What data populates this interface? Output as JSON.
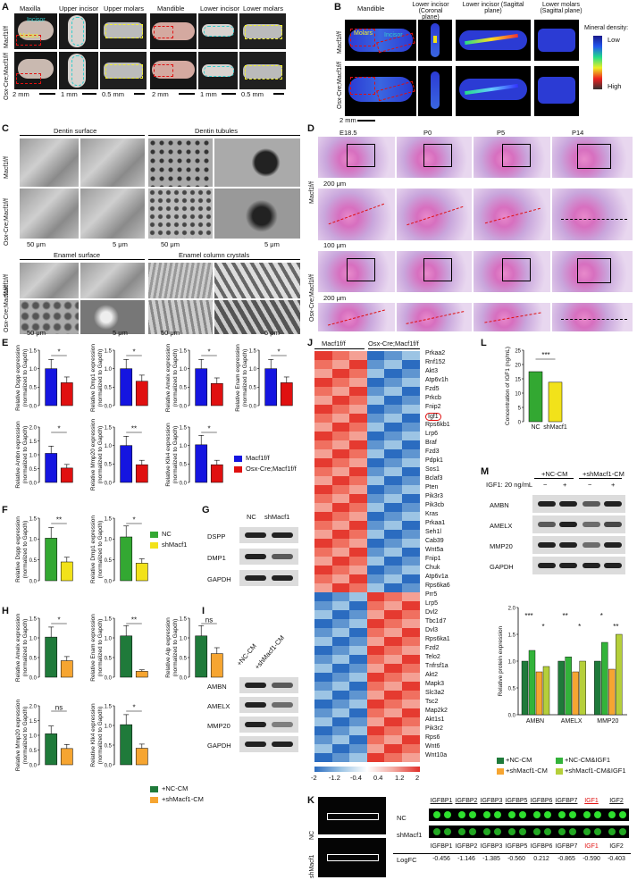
{
  "panels": {
    "A": "A",
    "B": "B",
    "C": "C",
    "D": "D",
    "E": "E",
    "F": "F",
    "G": "G",
    "H": "H",
    "I": "I",
    "J": "J",
    "K": "K",
    "L": "L",
    "M": "M"
  },
  "A": {
    "headers": [
      "Maxilla",
      "Upper incisor",
      "Upper molars",
      "Mandible",
      "Lower incisor",
      "Lower molars"
    ],
    "rows": [
      "Macf1f/f",
      "Osx-Cre;Macf1f/f"
    ],
    "scale": [
      "2 mm",
      "1 mm",
      "0.5 mm",
      "2 mm",
      "1 mm",
      "0.5 mm"
    ],
    "labels": {
      "incisor": "Incisor",
      "molars": "Molars"
    }
  },
  "B": {
    "headers": [
      "Mandible",
      "Lower incisor (Coronal plane)",
      "Lower incisor (Sagittal plane)",
      "Lower molars (Sagittal plane)"
    ],
    "rows": [
      "Macf1f/f",
      "Osx-Cre;Macf1f/f"
    ],
    "legend_title": "Mineral density:",
    "low": "Low",
    "high": "High",
    "scale": "2 mm",
    "labels": {
      "incisor": "Incisor",
      "molars": "Molars"
    }
  },
  "C": {
    "headers_top": [
      "Dentin surface",
      "Dentin tubules"
    ],
    "headers_bottom": [
      "Enamel surface",
      "Enamel column crystals"
    ],
    "rows": [
      "Macf1f/f",
      "Osx-Cre;Macf1f/f"
    ],
    "scale_top": [
      "50 μm",
      "5 μm",
      "50 μm",
      "5 μm"
    ],
    "scale_bottom": [
      "50 μm",
      "5 μm",
      "50 μm",
      "5 μm"
    ]
  },
  "D": {
    "stages": [
      "E18.5",
      "P0",
      "P5",
      "P14"
    ],
    "rows": [
      "Macf1f/f",
      "Osx-Cre;Macf1f/f"
    ],
    "scale_low": "200 μm",
    "scale_high": "100 μm"
  },
  "E": {
    "charts": [
      {
        "ylabel": "Relative Dspp expression\n(normalized to Gapdh)",
        "sig": "*",
        "values": [
          1.0,
          0.62
        ],
        "ylim": [
          0,
          1.5
        ],
        "ticks": [
          "0.0",
          "0.5",
          "1.0",
          "1.5"
        ]
      },
      {
        "ylabel": "Relative Dmp1 expression\n(normalized to Gapdh)",
        "sig": "*",
        "values": [
          1.0,
          0.66
        ],
        "ylim": [
          0,
          1.5
        ],
        "ticks": [
          "0.0",
          "0.5",
          "1.0",
          "1.5"
        ]
      },
      {
        "ylabel": "Relative Amelx expression\n(normalized to Gapdh)",
        "sig": "*",
        "values": [
          1.0,
          0.6
        ],
        "ylim": [
          0,
          1.5
        ],
        "ticks": [
          "0.0",
          "0.5",
          "1.0",
          "1.5"
        ]
      },
      {
        "ylabel": "Relative Enam expression\n(normalized to Gapdh)",
        "sig": "*",
        "values": [
          1.0,
          0.62
        ],
        "ylim": [
          0,
          1.5
        ],
        "ticks": [
          "0.0",
          "0.5",
          "1.0",
          "1.5"
        ]
      },
      {
        "ylabel": "Relative Ambn expression\n(normalized to Gapdh)",
        "sig": "*",
        "values": [
          1.05,
          0.52
        ],
        "ylim": [
          0,
          2.0
        ],
        "ticks": [
          "0.0",
          "0.5",
          "1.0",
          "1.5",
          "2.0"
        ]
      },
      {
        "ylabel": "Relative Mmp20 expression\n(normalized to Gapdh)",
        "sig": "**",
        "values": [
          1.0,
          0.48
        ],
        "ylim": [
          0,
          1.5
        ],
        "ticks": [
          "0.0",
          "0.5",
          "1.0",
          "1.5"
        ]
      },
      {
        "ylabel": "Relative Klk4 expression\n(normalized to Gapdh)",
        "sig": "*",
        "values": [
          1.02,
          0.48
        ],
        "ylim": [
          0,
          1.5
        ],
        "ticks": [
          "0.0",
          "0.5",
          "1.0",
          "1.5"
        ]
      }
    ],
    "legend": [
      "Macf1f/f",
      "Osx-Cre;Macf1f/f"
    ],
    "colors": [
      "#1515e0",
      "#e01010"
    ]
  },
  "F": {
    "charts": [
      {
        "ylabel": "Relative Dspp expression\n(normalized to Gapdh)",
        "sig": "**",
        "values": [
          1.02,
          0.45
        ],
        "ylim": [
          0,
          1.5
        ],
        "ticks": [
          "0.0",
          "0.5",
          "1.0",
          "1.5"
        ]
      },
      {
        "ylabel": "Relative Dmp1 expression\n(normalized to Gapdh)",
        "sig": "*",
        "values": [
          1.05,
          0.42
        ],
        "ylim": [
          0,
          1.5
        ],
        "ticks": [
          "0.0",
          "0.5",
          "1.0",
          "1.5"
        ]
      }
    ],
    "legend": [
      "NC",
      "shMacf1"
    ],
    "colors": [
      "#33a832",
      "#f2e21a"
    ]
  },
  "G": {
    "cols": [
      "NC",
      "shMacf1"
    ],
    "rows": [
      "DSPP",
      "DMP1",
      "GAPDH"
    ]
  },
  "H": {
    "charts": [
      {
        "ylabel": "Relative Amelx expression\n(normalized to Gapdh)",
        "sig": "*",
        "values": [
          1.02,
          0.42
        ],
        "ylim": [
          0,
          1.5
        ],
        "ticks": [
          "0.0",
          "0.5",
          "1.0",
          "1.5"
        ]
      },
      {
        "ylabel": "Relative Enam expression\n(normalized to Gapdh)",
        "sig": "**",
        "values": [
          1.05,
          0.15
        ],
        "ylim": [
          0,
          1.5
        ],
        "ticks": [
          "0.0",
          "0.5",
          "1.0",
          "1.5"
        ]
      },
      {
        "ylabel": "Relative Alp expression\n(normalized to Gapdh)",
        "sig": "ns",
        "values": [
          1.05,
          0.6
        ],
        "ylim": [
          0,
          1.5
        ],
        "ticks": [
          "0.0",
          "0.5",
          "1.0",
          "1.5"
        ]
      },
      {
        "ylabel": "Relative Mmp20 expression\n(normalized to Gapdh)",
        "sig": "ns",
        "values": [
          1.05,
          0.55
        ],
        "ylim": [
          0,
          2.0
        ],
        "ticks": [
          "0.0",
          "0.5",
          "1.0",
          "1.5",
          "2.0"
        ]
      },
      {
        "ylabel": "Relative Klk4 expression\n(normalized to Gapdh)",
        "sig": "*",
        "values": [
          1.02,
          0.42
        ],
        "ylim": [
          0,
          1.5
        ],
        "ticks": [
          "0.0",
          "0.5",
          "1.0",
          "1.5"
        ]
      }
    ],
    "legend": [
      "+NC-CM",
      "+shMacf1-CM"
    ],
    "colors": [
      "#1f7a3a",
      "#f6a531"
    ]
  },
  "I": {
    "cols": [
      "+NC-CM",
      "+shMacf1-CM"
    ],
    "rows": [
      "AMBN",
      "AMELX",
      "MMP20",
      "GAPDH"
    ]
  },
  "J": {
    "groups": [
      "Macf1f/f",
      "Osx-Cre;Macf1f/f"
    ],
    "genes": [
      "Prkaa2",
      "Rnf152",
      "Akt3",
      "Atp6v1h",
      "Fzd5",
      "Prkcb",
      "Fnip2",
      "Igf1",
      "Rps6kb1",
      "Lrp6",
      "Braf",
      "Fzd3",
      "Pdpk1",
      "Sos1",
      "Bclaf3",
      "Pten",
      "Pik3r3",
      "Pik3cb",
      "Kras",
      "Prkaa1",
      "Seh1l",
      "Cab39",
      "Wnt5a",
      "Fnip1",
      "Chuk",
      "Atp6v1a",
      "Rps6ka6",
      "Prr5",
      "Lrp5",
      "Dvl2",
      "Tbc1d7",
      "Dvl3",
      "Rps6ka1",
      "Fzd2",
      "Telo2",
      "Tnfrsf1a",
      "Akt2",
      "Mapk3",
      "Slc3a2",
      "Tsc2",
      "Map2k2",
      "Akt1s1",
      "Pik3r2",
      "Rps6",
      "Wnt6",
      "Wnt10a"
    ],
    "highlight": "Igf1",
    "scale_ticks": [
      "-2",
      "-1.2",
      "-0.4",
      "0.4",
      "1.2",
      "2"
    ]
  },
  "K": {
    "rows": [
      "NC",
      "shMacf1"
    ],
    "headers": [
      "IGFBP1",
      "IGFBP2",
      "IGFBP3",
      "IGFBP5",
      "IGFBP6",
      "IGFBP7",
      "IGF1",
      "IGF2"
    ],
    "logfc_label": "LogFC",
    "logfc": [
      "-0.456",
      "-1.146",
      "-1.385",
      "-0.560",
      "0.212",
      "-0.865",
      "-0.590",
      "-0.403"
    ],
    "highlight_color": "#e01010"
  },
  "L": {
    "chart_data": {
      "type": "bar",
      "categories": [
        "NC",
        "shMacf1"
      ],
      "values": [
        17.5,
        13.8
      ],
      "ylim": [
        0,
        25
      ],
      "ylabel": "Concentration of IGF1 (ng/mL)",
      "sig": "***",
      "ticks": [
        "0",
        "5",
        "10",
        "15",
        "20",
        "25"
      ]
    },
    "colors": [
      "#33a832",
      "#f2e21a"
    ]
  },
  "M": {
    "group_labels": [
      "+NC-CM",
      "+shMacf1-CM"
    ],
    "igf_label": "IGF1: 20 ng/mL",
    "signs": [
      "−",
      "+",
      "−",
      "+"
    ],
    "blot_rows": [
      "AMBN",
      "AMELX",
      "MMP20",
      "GAPDH"
    ],
    "chart_data": {
      "type": "bar",
      "categories": [
        "AMBN",
        "AMELX",
        "MMP20"
      ],
      "series": [
        {
          "name": "+NC-CM",
          "values": [
            1.0,
            1.0,
            1.0
          ]
        },
        {
          "name": "+NC-CM&IGF1",
          "values": [
            1.2,
            1.08,
            1.35
          ]
        },
        {
          "name": "+shMacf1-CM",
          "values": [
            0.8,
            0.8,
            0.85
          ]
        },
        {
          "name": "+shMacf1-CM&IGF1",
          "values": [
            0.9,
            1.0,
            1.5
          ]
        }
      ],
      "ylim": [
        0,
        2.0
      ],
      "ylabel": "Relative protein expression",
      "ticks": [
        "0.0",
        "0.5",
        "1.0",
        "1.5",
        "2.0"
      ],
      "sigs": [
        [
          "***",
          "*"
        ],
        [
          "**",
          "*"
        ],
        [
          "*",
          "**"
        ]
      ]
    },
    "colors": [
      "#1f7a3a",
      "#33b33a",
      "#f6a531",
      "#b5cf3a"
    ],
    "legend": [
      "+NC-CM",
      "+NC-CM&IGF1",
      "+shMacf1-CM",
      "+shMacf1-CM&IGF1"
    ]
  }
}
